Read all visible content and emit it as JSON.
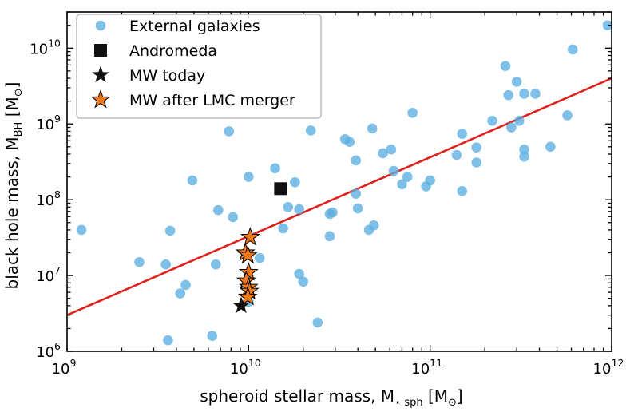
{
  "chart_data": {
    "type": "scatter",
    "xscale": "log",
    "yscale": "log",
    "xlim": [
      1000000000.0,
      1000000000000.0
    ],
    "ylim": [
      1000000.0,
      30000000000.0
    ],
    "xlabel": "spheroid stellar mass, M⋆ sph [M⊙]",
    "ylabel": "black hole mass, M_BH [M⊙]",
    "xlabel_parts": {
      "main": "spheroid stellar mass,  M",
      "sub": "⋆ sph",
      "unit": " [M",
      "unit_sub": "⊙",
      "close": "]"
    },
    "ylabel_parts": {
      "main": "black hole mass,  M",
      "sub": "BH",
      "unit": " [M",
      "unit_sub": "⊙",
      "close": "]"
    },
    "x_ticks": [
      {
        "value": 1000000000.0,
        "base": "10",
        "exp": "9"
      },
      {
        "value": 10000000000.0,
        "base": "10",
        "exp": "10"
      },
      {
        "value": 100000000000.0,
        "base": "10",
        "exp": "11"
      },
      {
        "value": 1000000000000.0,
        "base": "10",
        "exp": "12"
      }
    ],
    "y_ticks": [
      {
        "value": 1000000.0,
        "base": "10",
        "exp": "6"
      },
      {
        "value": 10000000.0,
        "base": "10",
        "exp": "7"
      },
      {
        "value": 100000000.0,
        "base": "10",
        "exp": "8"
      },
      {
        "value": 1000000000.0,
        "base": "10",
        "exp": "9"
      },
      {
        "value": 10000000000.0,
        "base": "10",
        "exp": "10"
      }
    ],
    "legend_position": "top-left",
    "colors": {
      "galaxies": "#5aaee0",
      "andromeda": "#111111",
      "mw_today": "#111111",
      "mw_merger": "#f07a1e",
      "fit": "#e0201b"
    },
    "series": [
      {
        "name": "External galaxies",
        "marker": "circle",
        "color": "#5aaee0",
        "points": [
          [
            1200000000.0,
            40000000.0
          ],
          [
            2500000000.0,
            15000000.0
          ],
          [
            3500000000.0,
            14000000.0
          ],
          [
            3600000000.0,
            1400000.0
          ],
          [
            3700000000.0,
            39000000.0
          ],
          [
            4200000000.0,
            5800000.0
          ],
          [
            4500000000.0,
            7500000.0
          ],
          [
            4900000000.0,
            180000000.0
          ],
          [
            6300000000.0,
            1600000.0
          ],
          [
            6600000000.0,
            14000000.0
          ],
          [
            6800000000.0,
            73000000.0
          ],
          [
            7800000000.0,
            800000000.0
          ],
          [
            8200000000.0,
            59000000.0
          ],
          [
            10000000000.0,
            200000000.0
          ],
          [
            10000000000.0,
            4500000.0
          ],
          [
            11500000000.0,
            17000000.0
          ],
          [
            14000000000.0,
            260000000.0
          ],
          [
            15500000000.0,
            42000000.0
          ],
          [
            16500000000.0,
            80000000.0
          ],
          [
            18000000000.0,
            170000000.0
          ],
          [
            19000000000.0,
            75000000.0
          ],
          [
            19000000000.0,
            10500000.0
          ],
          [
            20000000000.0,
            8300000.0
          ],
          [
            22000000000.0,
            820000000.0
          ],
          [
            24000000000.0,
            2400000.0
          ],
          [
            28000000000.0,
            65000000.0
          ],
          [
            28000000000.0,
            33000000.0
          ],
          [
            29000000000.0,
            68000000.0
          ],
          [
            34000000000.0,
            630000000.0
          ],
          [
            36000000000.0,
            580000000.0
          ],
          [
            39000000000.0,
            120000000.0
          ],
          [
            39000000000.0,
            330000000.0
          ],
          [
            40000000000.0,
            77000000.0
          ],
          [
            46000000000.0,
            40000000.0
          ],
          [
            48000000000.0,
            870000000.0
          ],
          [
            49000000000.0,
            46000000.0
          ],
          [
            55000000000.0,
            410000000.0
          ],
          [
            61000000000.0,
            460000000.0
          ],
          [
            63000000000.0,
            240000000.0
          ],
          [
            70000000000.0,
            160000000.0
          ],
          [
            75000000000.0,
            200000000.0
          ],
          [
            80000000000.0,
            1400000000.0
          ],
          [
            95000000000.0,
            150000000.0
          ],
          [
            100000000000.0,
            180000000.0
          ],
          [
            140000000000.0,
            390000000.0
          ],
          [
            150000000000.0,
            130000000.0
          ],
          [
            150000000000.0,
            740000000.0
          ],
          [
            180000000000.0,
            310000000.0
          ],
          [
            180000000000.0,
            490000000.0
          ],
          [
            220000000000.0,
            1100000000.0
          ],
          [
            260000000000.0,
            5800000000.0
          ],
          [
            270000000000.0,
            2400000000.0
          ],
          [
            280000000000.0,
            900000000.0
          ],
          [
            300000000000.0,
            3600000000.0
          ],
          [
            310000000000.0,
            1100000000.0
          ],
          [
            330000000000.0,
            2500000000.0
          ],
          [
            330000000000.0,
            460000000.0
          ],
          [
            330000000000.0,
            370000000.0
          ],
          [
            380000000000.0,
            2500000000.0
          ],
          [
            460000000000.0,
            500000000.0
          ],
          [
            570000000000.0,
            1300000000.0
          ],
          [
            610000000000.0,
            9600000000.0
          ],
          [
            950000000000.0,
            20000000000.0
          ]
        ]
      },
      {
        "name": "Andromeda",
        "marker": "square",
        "color": "#111111",
        "points": [
          [
            15000000000.0,
            140000000.0
          ]
        ]
      },
      {
        "name": "MW today",
        "marker": "star",
        "color": "#111111",
        "points": [
          [
            9100000000.0,
            4000000.0
          ]
        ]
      },
      {
        "name": "MW after LMC merger",
        "marker": "star",
        "color": "#f07a1e",
        "points": [
          [
            10200000000.0,
            32000000.0
          ],
          [
            9600000000.0,
            20000000.0
          ],
          [
            9900000000.0,
            18500000.0
          ],
          [
            10000000000.0,
            11000000.0
          ],
          [
            9700000000.0,
            8500000.0
          ],
          [
            10000000000.0,
            7000000.0
          ],
          [
            10100000000.0,
            6200000.0
          ],
          [
            9900000000.0,
            5200000.0
          ]
        ]
      }
    ],
    "fit_line": {
      "name": "fit",
      "color": "#e0201b",
      "points": [
        [
          1000000000.0,
          3000000.0
        ],
        [
          1000000000000.0,
          4000000000.0
        ]
      ]
    }
  }
}
